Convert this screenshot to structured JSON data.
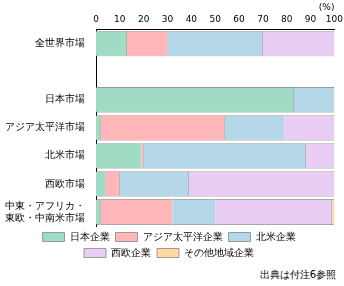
{
  "chart_data": {
    "type": "bar",
    "orientation": "horizontal",
    "stacked": true,
    "xlabel": "(%)",
    "annotations": [
      "出典は付注6参照"
    ],
    "categories": [
      "全世界市場",
      null,
      "日本市場",
      "アジア太平洋市場",
      "北米市場",
      "西欧市場",
      [
        "中東・アフリカ・",
        "東欧・中南米市場"
      ]
    ],
    "series": [
      {
        "name": "日本企業",
        "color": "#9fdcc3",
        "values": [
          13,
          null,
          83,
          2,
          19,
          4,
          2
        ]
      },
      {
        "name": "アジア太平洋企業",
        "color": "#ffb6b9",
        "values": [
          17,
          null,
          0,
          52,
          1,
          6,
          30
        ]
      },
      {
        "name": "北米企業",
        "color": "#b5d8e8",
        "values": [
          40,
          null,
          17,
          25,
          68,
          29,
          18
        ]
      },
      {
        "name": "西欧企業",
        "color": "#e9cdf2",
        "values": [
          30,
          null,
          0,
          21,
          12,
          61,
          49
        ]
      },
      {
        "name": "その他地域企業",
        "color": "#ffd8a3",
        "values": [
          0,
          null,
          0,
          0,
          0,
          0,
          1
        ]
      }
    ],
    "xlim": [
      0,
      100
    ],
    "xticks": [
      0,
      10,
      20,
      30,
      40,
      50,
      60,
      70,
      80,
      90,
      100
    ],
    "grid": false,
    "legend": "bottom",
    "data_labels": false
  }
}
